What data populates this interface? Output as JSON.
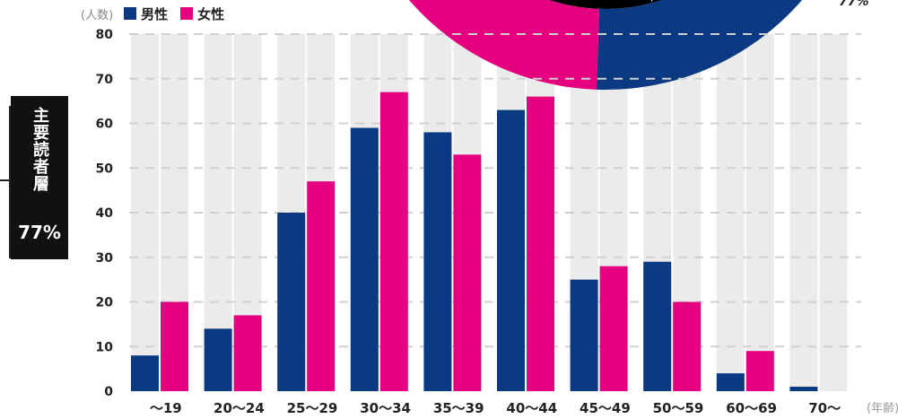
{
  "legend": {
    "unit_label": "(人数)",
    "male_label": "男性",
    "female_label": "女性"
  },
  "colors": {
    "male": "#0b3a82",
    "female": "#e5007f",
    "column_band": "#ebebeb",
    "grid": "#d0d0d0",
    "donut_inner": "#000000"
  },
  "donut_pct_label": "77%",
  "core_readers": {
    "label": "主要読者層",
    "percent": "77%"
  },
  "x_unit_label": "(年齢)",
  "chart_data": {
    "type": "bar",
    "categories": [
      "〜19",
      "20〜24",
      "25〜29",
      "30〜34",
      "35〜39",
      "40〜44",
      "45〜49",
      "50〜59",
      "60〜69",
      "70〜"
    ],
    "series": [
      {
        "name": "男性",
        "values": [
          8,
          14,
          40,
          59,
          58,
          63,
          25,
          29,
          4,
          1
        ]
      },
      {
        "name": "女性",
        "values": [
          20,
          17,
          47,
          67,
          53,
          66,
          28,
          20,
          9,
          0
        ]
      }
    ],
    "ylim": [
      0,
      80
    ],
    "yticks": [
      0,
      10,
      20,
      30,
      40,
      50,
      60,
      70,
      80
    ],
    "ylabel": "(人数)",
    "xlabel": "(年齢)",
    "grid": true,
    "legend": "top-left"
  }
}
